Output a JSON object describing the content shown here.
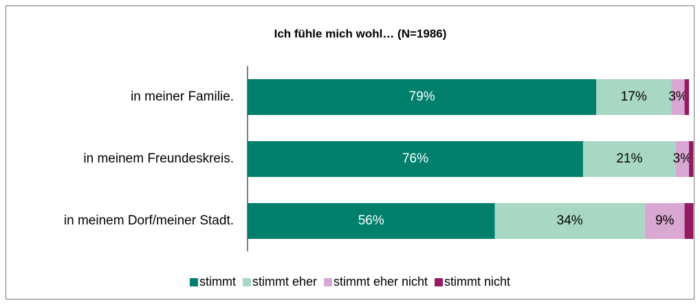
{
  "chart_data": {
    "type": "stacked-bar-horizontal",
    "title": "Ich fühle mich wohl… (N=1986)",
    "categories": [
      "in meiner Familie.",
      "in meinem Freundeskreis.",
      "in meinem Dorf/meiner Stadt."
    ],
    "xlim": [
      0,
      100
    ],
    "series": [
      {
        "name": "stimmt",
        "color": "#00806c",
        "values": [
          79,
          76,
          56
        ],
        "value_labels": [
          "79%",
          "76%",
          "56%"
        ]
      },
      {
        "name": "stimmt eher",
        "color": "#a8d8c4",
        "values": [
          17,
          21,
          34
        ],
        "value_labels": [
          "17%",
          "21%",
          "34%"
        ]
      },
      {
        "name": "stimmt eher nicht",
        "color": "#d8a8d2",
        "values": [
          3,
          3,
          9
        ],
        "value_labels": [
          "3%",
          "3%",
          "9%"
        ]
      },
      {
        "name": "stimmt nicht",
        "color": "#961a60",
        "values": [
          1,
          1,
          2
        ]
      }
    ],
    "legend": "bottom"
  }
}
